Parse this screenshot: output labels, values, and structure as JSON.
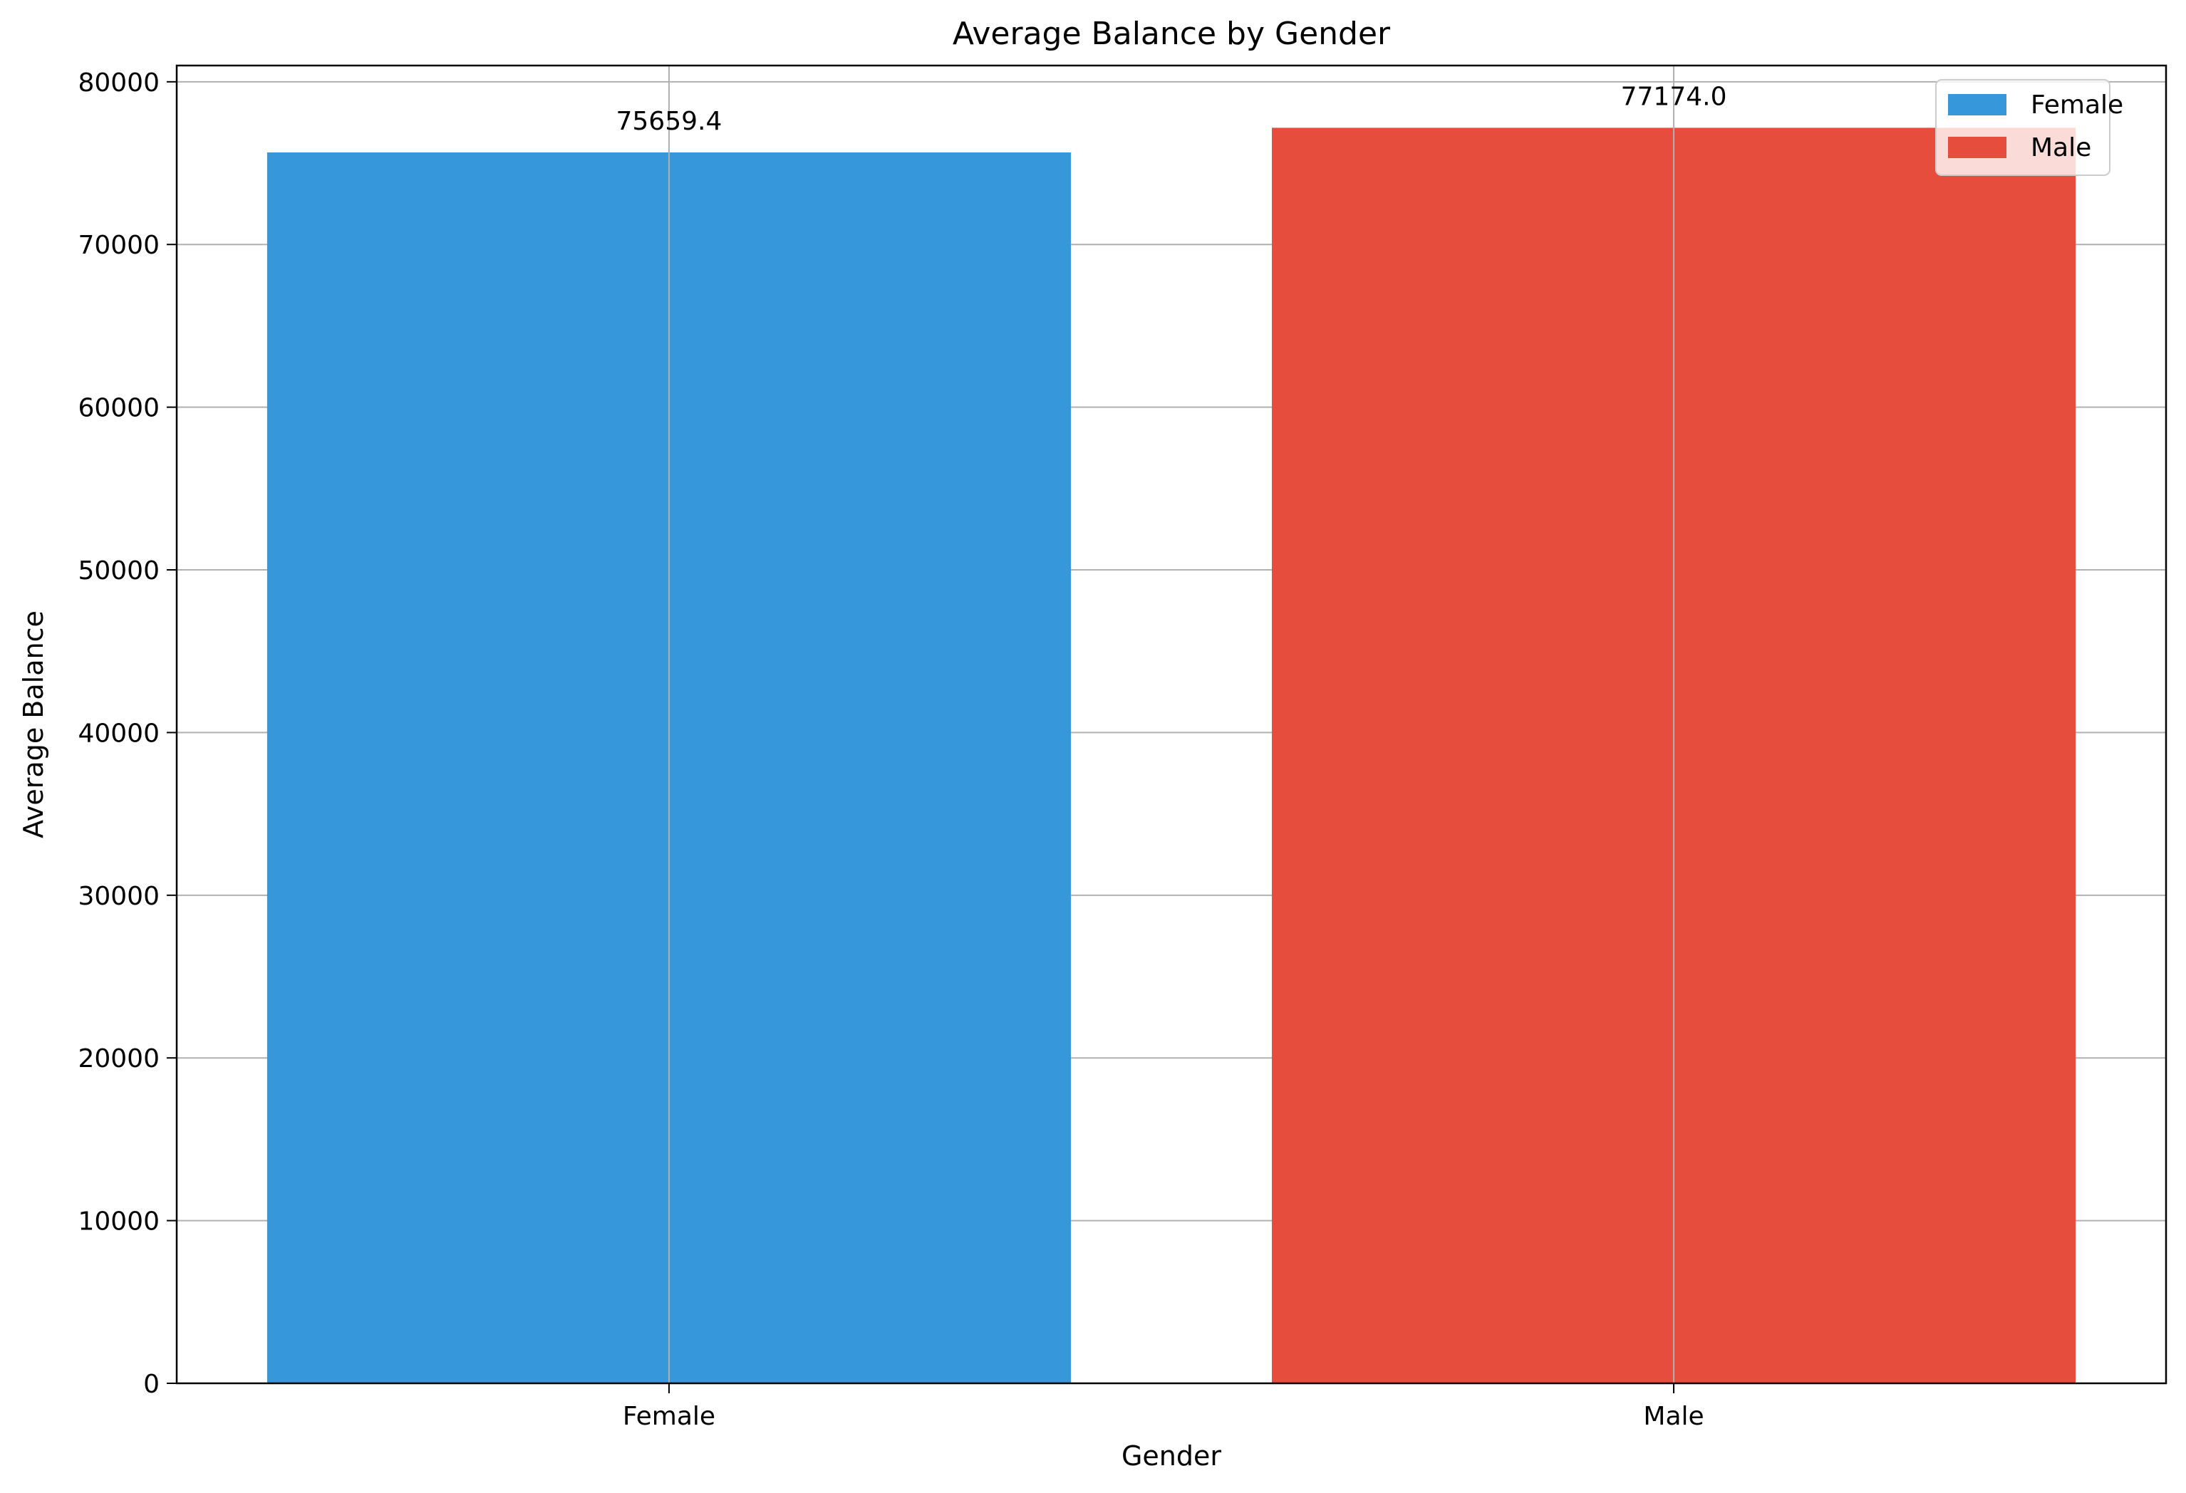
{
  "chart_data": {
    "type": "bar",
    "title": "Average Balance by Gender",
    "xlabel": "Gender",
    "ylabel": "Average Balance",
    "categories": [
      "Female",
      "Male"
    ],
    "values": [
      75659.4,
      77174.0
    ],
    "value_labels": [
      "75659.4",
      "77174.0"
    ],
    "colors": [
      "#3698db",
      "#e74d3d"
    ],
    "ylim": [
      0,
      81000
    ],
    "yticks": [
      0,
      10000,
      20000,
      30000,
      40000,
      50000,
      60000,
      70000,
      80000
    ],
    "ytick_labels": [
      "0",
      "10000",
      "20000",
      "30000",
      "40000",
      "50000",
      "60000",
      "70000",
      "80000"
    ],
    "grid": true,
    "legend": {
      "position": "top-right",
      "entries": [
        {
          "label": "Female",
          "color": "#3698db"
        },
        {
          "label": "Male",
          "color": "#e74d3d"
        }
      ]
    }
  }
}
